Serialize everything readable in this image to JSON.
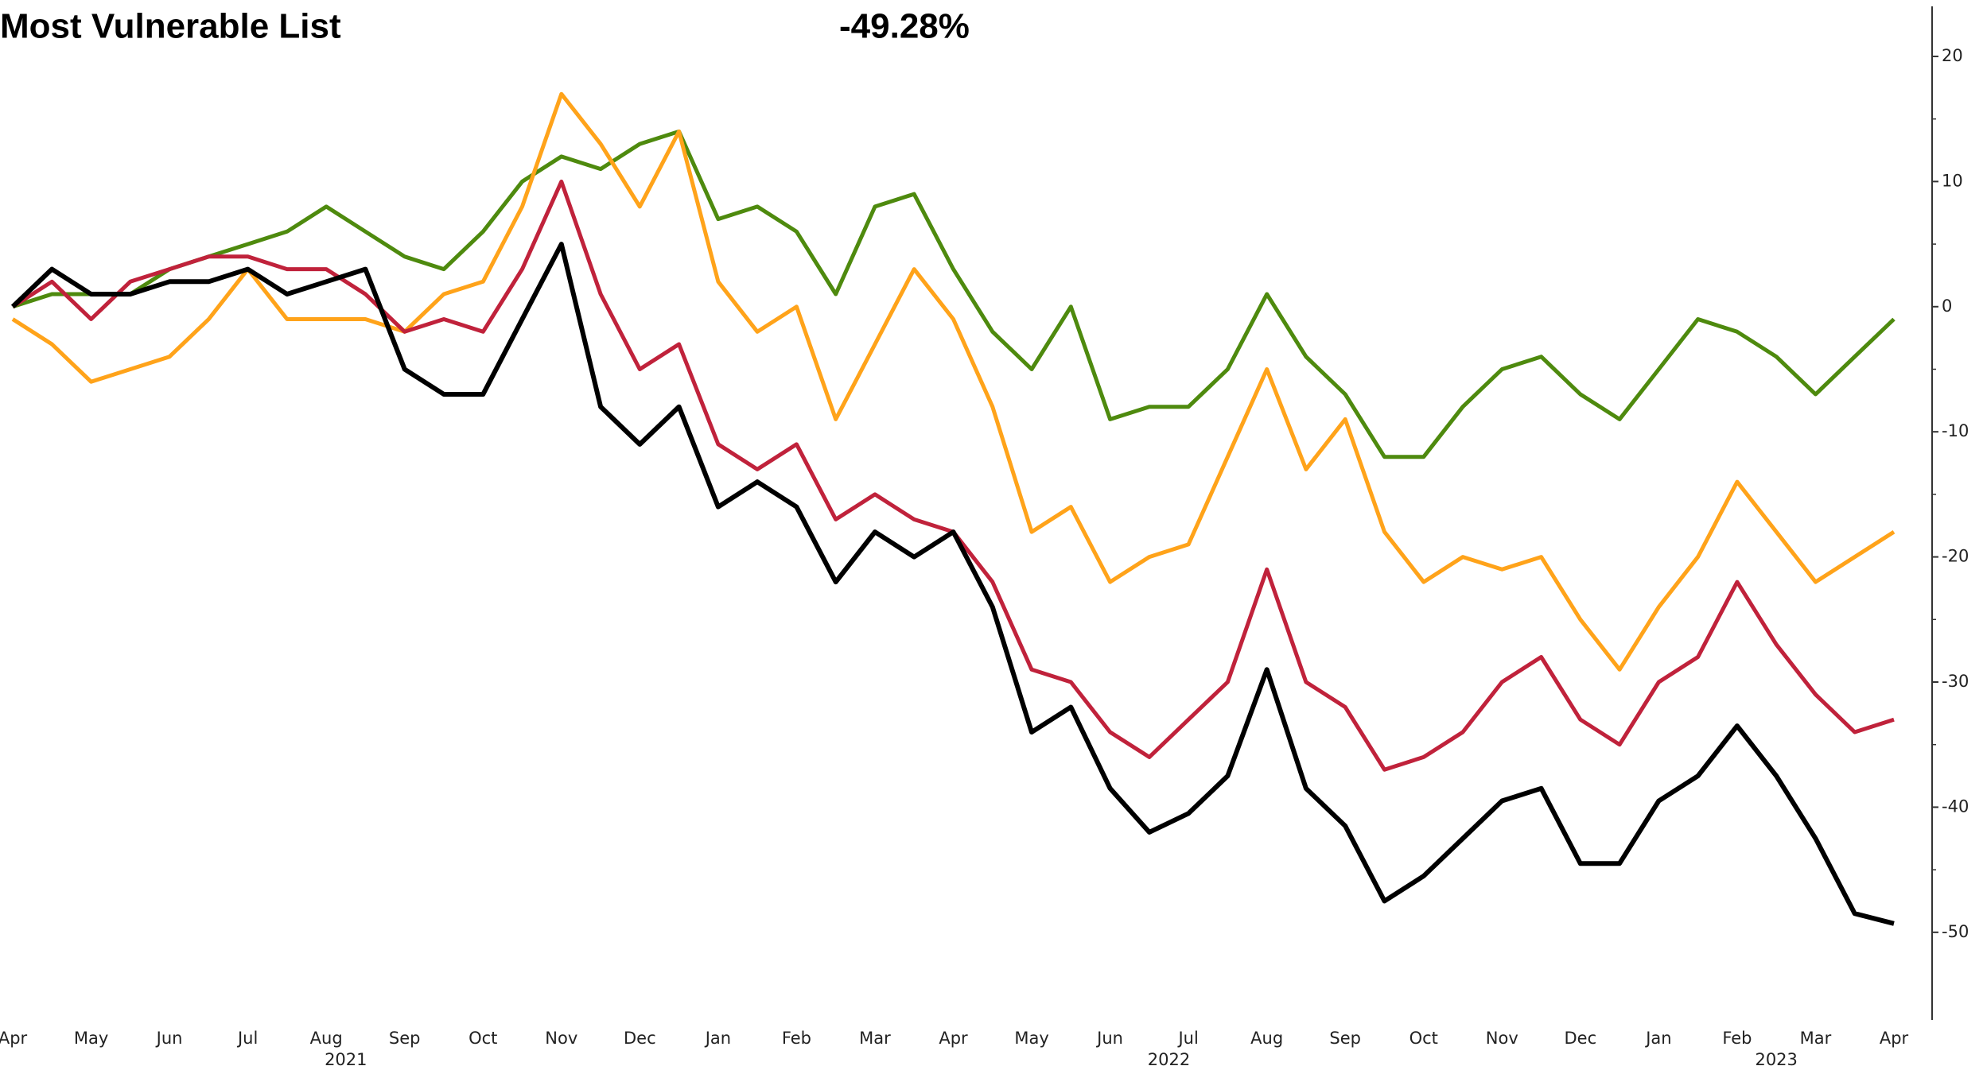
{
  "chart_data": {
    "type": "line",
    "title": "Most Vulnerable List",
    "annotation": "-49.28%",
    "categories": [
      "Apr",
      null,
      "May",
      null,
      "Jun",
      null,
      "Jul",
      null,
      "Aug",
      null,
      "Sep",
      null,
      "Oct",
      null,
      "Nov",
      null,
      "Dec",
      null,
      "Jan",
      null,
      "Feb",
      null,
      "Mar",
      null,
      "Apr",
      null,
      "May",
      null,
      "Jun",
      null,
      "Jul",
      null,
      "Aug",
      null,
      "Sep",
      null,
      "Oct",
      null,
      "Nov",
      null,
      "Dec",
      null,
      "Jan",
      null,
      "Feb",
      null,
      "Mar",
      null,
      "Apr"
    ],
    "years": [
      "2021",
      "2022",
      "2023"
    ],
    "series": [
      {
        "color": "#4e8a0e",
        "values": [
          0,
          1,
          1,
          1,
          3,
          4,
          5,
          6,
          8,
          6,
          4,
          3,
          6,
          10,
          12,
          11,
          13,
          14,
          7,
          8,
          6,
          1,
          8,
          9,
          3,
          -2,
          -5,
          0,
          -9,
          -8,
          -8,
          -5,
          1,
          -4,
          -7,
          -12,
          -12,
          -8,
          -5,
          -4,
          -7,
          -9,
          -5,
          -1,
          -2,
          -4,
          -7,
          -4,
          -1
        ]
      },
      {
        "color": "#ffa31a",
        "values": [
          -1,
          -3,
          -6,
          -5,
          -4,
          -1,
          3,
          -1,
          -1,
          -1,
          -2,
          1,
          2,
          8,
          17,
          13,
          8,
          14,
          2,
          -2,
          0,
          -9,
          -3,
          3,
          -1,
          -8,
          -18,
          -16,
          -22,
          -20,
          -19,
          -12,
          -5,
          -13,
          -9,
          -18,
          -22,
          -20,
          -21,
          -20,
          -25,
          -29,
          -24,
          -20,
          -14,
          -18,
          -22,
          -20,
          -18
        ]
      },
      {
        "color": "#c0223b",
        "values": [
          0,
          2,
          -1,
          2,
          3,
          4,
          4,
          3,
          3,
          1,
          -2,
          -1,
          -2,
          3,
          10,
          1,
          -5,
          -3,
          -11,
          -13,
          -11,
          -17,
          -15,
          -17,
          -18,
          -22,
          -29,
          -30,
          -34,
          -36,
          -33,
          -30,
          -21,
          -30,
          -32,
          -37,
          -36,
          -34,
          -30,
          -28,
          -33,
          -35,
          -30,
          -28,
          -22,
          -27,
          -31,
          -34,
          -33
        ]
      },
      {
        "color": "#000000",
        "values": [
          0,
          3,
          1,
          1,
          2,
          2,
          3,
          1,
          2,
          3,
          -5,
          -7,
          -7,
          -1,
          5,
          -8,
          -11,
          -8,
          -16,
          -14,
          -16,
          -22,
          -18,
          -20,
          -18,
          -24,
          -34,
          -32,
          -38.5,
          -42,
          -40.5,
          -37.5,
          -29,
          -38.5,
          -41.5,
          -47.5,
          -45.5,
          -42.5,
          -39.5,
          -38.5,
          -44.5,
          -44.5,
          -39.5,
          -37.5,
          -33.5,
          -37.5,
          -42.5,
          -48.5,
          -49.3
        ]
      }
    ],
    "ylim": [
      -57,
      24
    ],
    "yticks": [
      20,
      10,
      0,
      -10,
      -20,
      -30,
      -40,
      -50
    ],
    "y_axis_side": "right"
  }
}
